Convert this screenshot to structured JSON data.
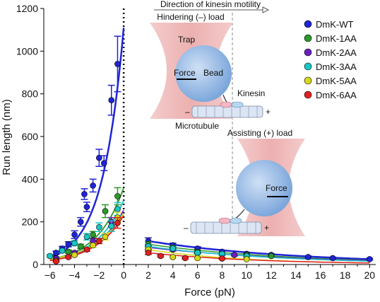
{
  "chart_data": {
    "type": "scatter",
    "xlabel": "Force (pN)",
    "ylabel": "Run length (nm)",
    "xlim": [
      -6.5,
      20.5
    ],
    "ylim": [
      0,
      1200
    ],
    "xticks": [
      -6,
      -4,
      -2,
      0,
      2,
      4,
      6,
      8,
      10,
      12,
      14,
      16,
      18,
      20
    ],
    "yticks": [
      0,
      200,
      400,
      600,
      800,
      1000,
      1200
    ],
    "grid": false,
    "legend_position": "top-right",
    "series": [
      {
        "name": "DmK-WT",
        "color": "#1f24d6",
        "points": [
          {
            "x": -5.5,
            "y": 55,
            "err": 8
          },
          {
            "x": -5.0,
            "y": 75,
            "err": 10
          },
          {
            "x": -4.5,
            "y": 95,
            "err": 12
          },
          {
            "x": -4.0,
            "y": 140,
            "err": 18
          },
          {
            "x": -3.5,
            "y": 200,
            "err": 20
          },
          {
            "x": -3.2,
            "y": 330,
            "err": 25
          },
          {
            "x": -3.0,
            "y": 270,
            "err": 22
          },
          {
            "x": -2.5,
            "y": 370,
            "err": 30
          },
          {
            "x": -2.0,
            "y": 500,
            "err": 40
          },
          {
            "x": -1.6,
            "y": 475,
            "err": 35
          },
          {
            "x": -1.0,
            "y": 770,
            "err": 70
          },
          {
            "x": -0.5,
            "y": 940,
            "err": 130
          },
          {
            "x": 2.0,
            "y": 110,
            "err": 15
          },
          {
            "x": 4.0,
            "y": 90,
            "err": 10
          },
          {
            "x": 6.0,
            "y": 75,
            "err": 8
          },
          {
            "x": 8.0,
            "y": 60,
            "err": 7
          },
          {
            "x": 10.0,
            "y": 50,
            "err": 6
          },
          {
            "x": 12.0,
            "y": 45,
            "err": 5
          },
          {
            "x": 15.0,
            "y": 35,
            "err": 5
          },
          {
            "x": 17.0,
            "y": 30,
            "err": 4
          },
          {
            "x": 20.0,
            "y": 25,
            "err": 4
          }
        ],
        "fit_y0": 1110,
        "fit_decay": 1.73
      },
      {
        "name": "DmK-1AA",
        "color": "#2a9a2a",
        "points": [
          {
            "x": -5.5,
            "y": 30,
            "err": 5
          },
          {
            "x": -4.5,
            "y": 60,
            "err": 8
          },
          {
            "x": -3.5,
            "y": 85,
            "err": 10
          },
          {
            "x": -2.5,
            "y": 140,
            "err": 15
          },
          {
            "x": -1.5,
            "y": 250,
            "err": 30
          },
          {
            "x": -0.5,
            "y": 320,
            "err": 40
          },
          {
            "x": 2.0,
            "y": 95,
            "err": 12
          },
          {
            "x": 4.0,
            "y": 80,
            "err": 8
          },
          {
            "x": 6.0,
            "y": 60,
            "err": 6
          },
          {
            "x": 8.0,
            "y": 48,
            "err": 5
          },
          {
            "x": 10.0,
            "y": 45,
            "err": 5
          },
          {
            "x": 12.0,
            "y": 40,
            "err": 4
          }
        ],
        "fit_y0": 360,
        "fit_decay": 2.2
      },
      {
        "name": "DmK-2AA",
        "color": "#6a20c0",
        "points": [
          {
            "x": -5.5,
            "y": 28,
            "err": 5
          },
          {
            "x": -4.0,
            "y": 55,
            "err": 8
          },
          {
            "x": -2.5,
            "y": 110,
            "err": 12
          },
          {
            "x": -1.0,
            "y": 200,
            "err": 20
          },
          {
            "x": 2.0,
            "y": 80,
            "err": 10
          },
          {
            "x": 4.0,
            "y": 70,
            "err": 7
          },
          {
            "x": 6.0,
            "y": 55,
            "err": 6
          },
          {
            "x": 9.0,
            "y": 45,
            "err": 5
          }
        ],
        "fit_y0": 255,
        "fit_decay": 2.4
      },
      {
        "name": "DmK-3AA",
        "color": "#19c6c6",
        "points": [
          {
            "x": -6.0,
            "y": 40,
            "err": 6
          },
          {
            "x": -5.0,
            "y": 65,
            "err": 8
          },
          {
            "x": -4.0,
            "y": 100,
            "err": 12
          },
          {
            "x": -3.0,
            "y": 130,
            "err": 15
          },
          {
            "x": -2.0,
            "y": 175,
            "err": 20
          },
          {
            "x": -1.0,
            "y": 180,
            "err": 25
          },
          {
            "x": -0.5,
            "y": 260,
            "err": 30
          },
          {
            "x": 2.0,
            "y": 85,
            "err": 10
          },
          {
            "x": 4.0,
            "y": 75,
            "err": 8
          },
          {
            "x": 6.0,
            "y": 55,
            "err": 6
          },
          {
            "x": 8.0,
            "y": 50,
            "err": 5
          },
          {
            "x": 10.0,
            "y": 40,
            "err": 4
          }
        ],
        "fit_y0": 300,
        "fit_decay": 2.3
      },
      {
        "name": "DmK-5AA",
        "color": "#d8d81a",
        "points": [
          {
            "x": -5.5,
            "y": 18,
            "err": 4
          },
          {
            "x": -4.0,
            "y": 45,
            "err": 6
          },
          {
            "x": -2.5,
            "y": 90,
            "err": 10
          },
          {
            "x": -1.5,
            "y": 130,
            "err": 15
          },
          {
            "x": -0.5,
            "y": 220,
            "err": 25
          },
          {
            "x": 2.0,
            "y": 70,
            "err": 8
          },
          {
            "x": 4.0,
            "y": 35,
            "err": 5
          },
          {
            "x": 6.0,
            "y": 30,
            "err": 4
          },
          {
            "x": 10.0,
            "y": 25,
            "err": 4
          }
        ],
        "fit_y0": 240,
        "fit_decay": 2.6
      },
      {
        "name": "DmK-6AA",
        "color": "#e02020",
        "points": [
          {
            "x": -5.5,
            "y": 15,
            "err": 4
          },
          {
            "x": -4.5,
            "y": 35,
            "err": 5
          },
          {
            "x": -3.0,
            "y": 70,
            "err": 8
          },
          {
            "x": -2.0,
            "y": 110,
            "err": 12
          },
          {
            "x": -0.5,
            "y": 195,
            "err": 25
          },
          {
            "x": 2.0,
            "y": 55,
            "err": 8
          },
          {
            "x": 3.0,
            "y": 40,
            "err": 5
          },
          {
            "x": 5.0,
            "y": 30,
            "err": 4
          },
          {
            "x": 8.0,
            "y": 28,
            "err": 4
          }
        ],
        "fit_y0": 230,
        "fit_decay": 2.4
      }
    ],
    "reference_line_x": 0
  },
  "inset": {
    "direction_label": "Direction of kinesin motility",
    "hindering_label": "Hindering (–) load",
    "assisting_label": "Assisting (+) load",
    "trap_label": "Trap",
    "force_label": "Force",
    "bead_label": "Bead",
    "kinesin_label": "Kinesin",
    "microtubule_label": "Microtubule",
    "minus_sign": "–",
    "plus_sign": "+",
    "force_label_2": "Force",
    "minus_sign_2": "–",
    "plus_sign_2": "+"
  }
}
